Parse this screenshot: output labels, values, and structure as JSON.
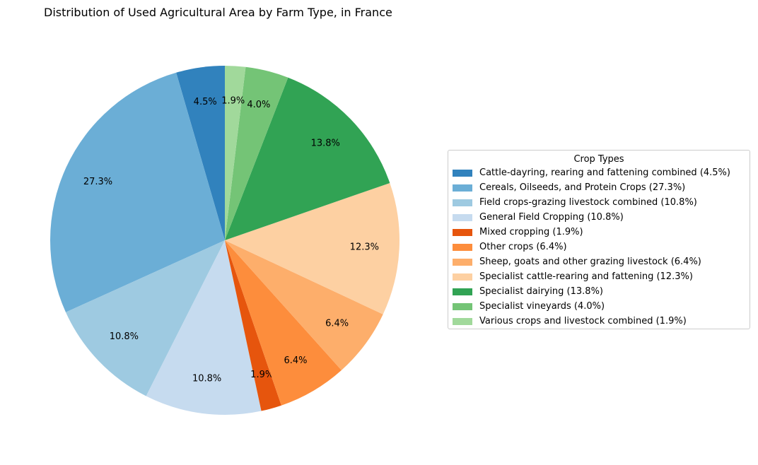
{
  "chart_data": {
    "type": "pie",
    "title": "Distribution of Used Agricultural Area by Farm Type, in France",
    "legend_title": "Crop Types",
    "legend_position": "right",
    "start_angle_deg": 90,
    "direction": "counterclockwise",
    "slices": [
      {
        "label": "Cattle-dayring, rearing and fattening combined",
        "value": 4.5,
        "pct_label": "4.5%",
        "legend": "Cattle-dayring, rearing and fattening combined (4.5%)",
        "color": "#3182bd"
      },
      {
        "label": "Cereals, Oilseeds, and Protein Crops",
        "value": 27.3,
        "pct_label": "27.3%",
        "legend": "Cereals, Oilseeds, and Protein Crops (27.3%)",
        "color": "#6baed6"
      },
      {
        "label": "Field crops-grazing livestock combined",
        "value": 10.8,
        "pct_label": "10.8%",
        "legend": "Field crops-grazing livestock combined (10.8%)",
        "color": "#9ecae1"
      },
      {
        "label": "General Field Cropping",
        "value": 10.8,
        "pct_label": "10.8%",
        "legend": "General Field Cropping (10.8%)",
        "color": "#c6dbef"
      },
      {
        "label": "Mixed cropping",
        "value": 1.9,
        "pct_label": "1.9%",
        "legend": "Mixed cropping (1.9%)",
        "color": "#e6550d"
      },
      {
        "label": "Other crops",
        "value": 6.4,
        "pct_label": "6.4%",
        "legend": "Other crops (6.4%)",
        "color": "#fd8d3c"
      },
      {
        "label": "Sheep, goats and other grazing livestock",
        "value": 6.4,
        "pct_label": "6.4%",
        "legend": "Sheep, goats and other grazing livestock (6.4%)",
        "color": "#fdae6b"
      },
      {
        "label": "Specialist cattle-rearing and fattening",
        "value": 12.3,
        "pct_label": "12.3%",
        "legend": "Specialist cattle-rearing and fattening (12.3%)",
        "color": "#fdd0a2"
      },
      {
        "label": "Specialist dairying",
        "value": 13.8,
        "pct_label": "13.8%",
        "legend": "Specialist dairying (13.8%)",
        "color": "#31a354"
      },
      {
        "label": "Specialist vineyards",
        "value": 4.0,
        "pct_label": "4.0%",
        "legend": "Specialist vineyards (4.0%)",
        "color": "#74c476"
      },
      {
        "label": "Various crops and livestock combined",
        "value": 1.9,
        "pct_label": "1.9%",
        "legend": "Various crops and livestock combined (1.9%)",
        "color": "#a1d99b"
      }
    ]
  }
}
